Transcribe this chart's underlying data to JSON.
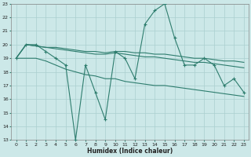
{
  "xlabel": "Humidex (Indice chaleur)",
  "x": [
    0,
    1,
    2,
    3,
    4,
    5,
    6,
    7,
    8,
    9,
    10,
    11,
    12,
    13,
    14,
    15,
    16,
    17,
    18,
    19,
    20,
    21,
    22,
    23
  ],
  "line_jagged": [
    19,
    20,
    20,
    19.5,
    19,
    18.5,
    13,
    18.5,
    16.5,
    14.5,
    19.5,
    19,
    17.5,
    21.5,
    22.5,
    23,
    20.5,
    18.5,
    18.5,
    19,
    18.5,
    17,
    17.5,
    16.5
  ],
  "line_smooth": [
    19,
    19,
    19,
    18.8,
    18.5,
    18.2,
    18,
    17.8,
    17.7,
    17.5,
    17.5,
    17.3,
    17.2,
    17.1,
    17.0,
    17.0,
    16.9,
    16.8,
    16.7,
    16.6,
    16.5,
    16.4,
    16.3,
    16.2
  ],
  "line_flat1": [
    19,
    20,
    19.9,
    19.8,
    19.8,
    19.7,
    19.6,
    19.5,
    19.5,
    19.4,
    19.5,
    19.5,
    19.4,
    19.4,
    19.3,
    19.3,
    19.2,
    19.1,
    19.0,
    19.0,
    18.9,
    18.8,
    18.8,
    18.7
  ],
  "line_flat2": [
    19,
    20,
    19.9,
    19.8,
    19.7,
    19.6,
    19.5,
    19.4,
    19.3,
    19.3,
    19.4,
    19.3,
    19.2,
    19.1,
    19.1,
    19.0,
    18.9,
    18.8,
    18.7,
    18.7,
    18.6,
    18.5,
    18.4,
    18.3
  ],
  "ylim": [
    13,
    23
  ],
  "xlim": [
    -0.5,
    23.5
  ],
  "yticks": [
    13,
    14,
    15,
    16,
    17,
    18,
    19,
    20,
    21,
    22,
    23
  ],
  "xticks": [
    0,
    1,
    2,
    3,
    4,
    5,
    6,
    7,
    8,
    9,
    10,
    11,
    12,
    13,
    14,
    15,
    16,
    17,
    18,
    19,
    20,
    21,
    22,
    23
  ],
  "line_color": "#2e7d6e",
  "bg_color": "#cce8e8",
  "grid_color": "#aacfcf"
}
